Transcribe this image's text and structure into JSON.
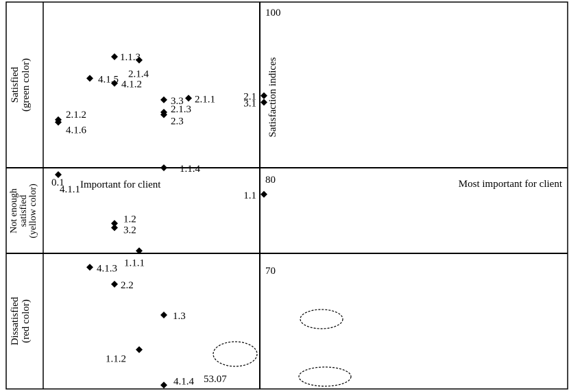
{
  "chart_data": {
    "type": "scatter",
    "title": "",
    "xlabel": "",
    "ylabel": "Satisfaction indices",
    "x_tick_labels": [
      "0.1"
    ],
    "y_tick_labels": [
      "100",
      "80",
      "70",
      "53.07"
    ],
    "quadrant_labels": {
      "left": "Important for client",
      "right": "Most important for client"
    },
    "bands": [
      {
        "line1": "Satisfied",
        "line2": "(green color)",
        "line3": ""
      },
      {
        "line1": "Not enough",
        "line2": "satisfied",
        "line3": "(yellow color)"
      },
      {
        "line1": "Dissatisfied",
        "line2": "(red color)",
        "line3": ""
      }
    ],
    "points": [
      {
        "label": "1.1.3",
        "x": 0.51,
        "y": 93.4
      },
      {
        "label": "2.1.4",
        "x": 0.69,
        "y": 93.0
      },
      {
        "label": "4.1.5",
        "x": 0.33,
        "y": 90.8
      },
      {
        "label": "4.1.2",
        "x": 0.51,
        "y": 90.2
      },
      {
        "label": "2.1.2",
        "x": 0.1,
        "y": 85.8
      },
      {
        "label": "4.1.6",
        "x": 0.1,
        "y": 85.5
      },
      {
        "label": "3.3",
        "x": 0.87,
        "y": 88.2
      },
      {
        "label": "2.1.1",
        "x": 1.05,
        "y": 88.4
      },
      {
        "label": "2.1",
        "x": 1.6,
        "y": 88.7
      },
      {
        "label": "3.1",
        "x": 1.6,
        "y": 87.9
      },
      {
        "label": "2.1.3",
        "x": 0.87,
        "y": 86.7
      },
      {
        "label": "2.3",
        "x": 0.87,
        "y": 86.4
      },
      {
        "label": "4.1.1",
        "x": 0.1,
        "y": 79.2
      },
      {
        "label": "1.1.4",
        "x": 0.87,
        "y": 80.0
      },
      {
        "label": "1.1",
        "x": 1.6,
        "y": 76.9
      },
      {
        "label": "1.2",
        "x": 0.51,
        "y": 73.5
      },
      {
        "label": "3.2",
        "x": 0.51,
        "y": 73.0
      },
      {
        "label": "1.1.1",
        "x": 0.69,
        "y": 70.3
      },
      {
        "label": "4.1.3",
        "x": 0.33,
        "y": 68.2
      },
      {
        "label": "2.2",
        "x": 0.51,
        "y": 66.0
      },
      {
        "label": "1.3",
        "x": 0.87,
        "y": 62.0
      },
      {
        "label": "1.1.2",
        "x": 0.69,
        "y": 57.5
      },
      {
        "label": "4.1.4",
        "x": 0.87,
        "y": 52.9
      }
    ],
    "highlighted": [
      "1.3",
      "1.1.2",
      "4.1.4"
    ],
    "grid": false,
    "legend": "none"
  }
}
